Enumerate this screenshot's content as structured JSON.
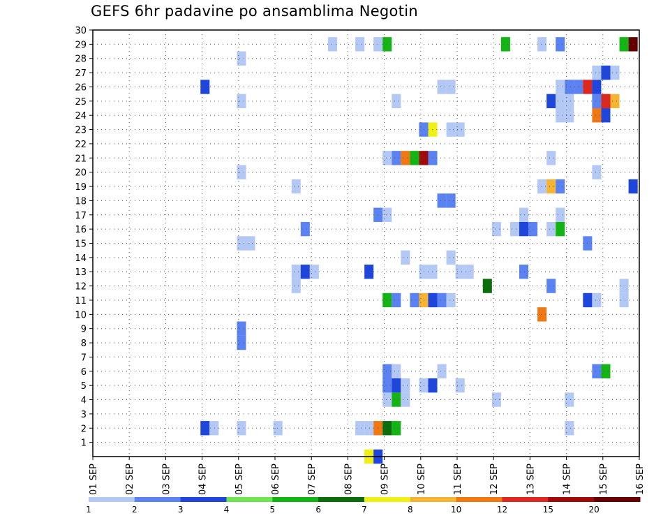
{
  "chart_data": {
    "type": "heatmap",
    "title": "GEFS 6hr padavine po ansamblima Negotin",
    "x_ticks": [
      "01 SEP",
      "02 SEP",
      "03 SEP",
      "04 SEP",
      "05 SEP",
      "06 SEP",
      "07 SEP",
      "08 SEP",
      "09 SEP",
      "10 SEP",
      "11 SEP",
      "12 SEP",
      "13 SEP",
      "14 SEP",
      "15 SEP",
      "16 SEP"
    ],
    "y_ticks": [
      "1",
      "2",
      "3",
      "4",
      "5",
      "6",
      "7",
      "8",
      "9",
      "10",
      "11",
      "12",
      "13",
      "14",
      "15",
      "16",
      "17",
      "18",
      "19",
      "20",
      "21",
      "22",
      "23",
      "24",
      "25",
      "26",
      "27",
      "28",
      "29",
      "30"
    ],
    "xlim": [
      "01 SEP",
      "16 SEP"
    ],
    "ylim": [
      0,
      30
    ],
    "grid": true,
    "legend": {
      "placement": "bottom",
      "labels": [
        "1",
        "2",
        "3",
        "4",
        "5",
        "6",
        "7",
        "8",
        "10",
        "12",
        "15",
        "20"
      ],
      "colors": [
        "#b4c8f5",
        "#5a82f0",
        "#1e46dc",
        "#6ee650",
        "#14b414",
        "#0a6e0a",
        "#f0f014",
        "#f5b432",
        "#f07814",
        "#dc281e",
        "#a00a0a",
        "#640000"
      ]
    },
    "cells_note": "x = day of September (decimal, 6-hour steps), member = ensemble member (y), v = 6hr precipitation (mm, category lower bound)",
    "cells": [
      {
        "x": 8.58,
        "member": 0,
        "v": 7
      },
      {
        "x": 8.83,
        "member": 0,
        "v": 3
      },
      {
        "x": 4.08,
        "member": 2,
        "v": 3
      },
      {
        "x": 4.33,
        "member": 2,
        "v": 1
      },
      {
        "x": 5.08,
        "member": 2,
        "v": 1
      },
      {
        "x": 6.08,
        "member": 2,
        "v": 1
      },
      {
        "x": 8.33,
        "member": 2,
        "v": 1
      },
      {
        "x": 8.58,
        "member": 2,
        "v": 1
      },
      {
        "x": 8.83,
        "member": 2,
        "v": 10
      },
      {
        "x": 9.08,
        "member": 2,
        "v": 6
      },
      {
        "x": 9.33,
        "member": 2,
        "v": 5
      },
      {
        "x": 14.08,
        "member": 2,
        "v": 1
      },
      {
        "x": 9.08,
        "member": 4,
        "v": 1
      },
      {
        "x": 9.33,
        "member": 4,
        "v": 5
      },
      {
        "x": 9.58,
        "member": 4,
        "v": 1
      },
      {
        "x": 14.08,
        "member": 4,
        "v": 1
      },
      {
        "x": 12.08,
        "member": 4,
        "v": 1
      },
      {
        "x": 9.08,
        "member": 5,
        "v": 2
      },
      {
        "x": 9.33,
        "member": 5,
        "v": 3
      },
      {
        "x": 9.58,
        "member": 5,
        "v": 1
      },
      {
        "x": 10.08,
        "member": 5,
        "v": 1
      },
      {
        "x": 10.33,
        "member": 5,
        "v": 3
      },
      {
        "x": 11.08,
        "member": 5,
        "v": 1
      },
      {
        "x": 9.08,
        "member": 6,
        "v": 2
      },
      {
        "x": 9.33,
        "member": 6,
        "v": 1
      },
      {
        "x": 10.58,
        "member": 6,
        "v": 1
      },
      {
        "x": 14.83,
        "member": 6,
        "v": 2
      },
      {
        "x": 15.08,
        "member": 6,
        "v": 5
      },
      {
        "x": 5.08,
        "member": 8,
        "v": 2
      },
      {
        "x": 5.08,
        "member": 9,
        "v": 2
      },
      {
        "x": 13.33,
        "member": 10,
        "v": 10
      },
      {
        "x": 9.08,
        "member": 11,
        "v": 5
      },
      {
        "x": 9.33,
        "member": 11,
        "v": 2
      },
      {
        "x": 9.83,
        "member": 11,
        "v": 2
      },
      {
        "x": 10.08,
        "member": 11,
        "v": 8
      },
      {
        "x": 10.33,
        "member": 11,
        "v": 3
      },
      {
        "x": 10.58,
        "member": 11,
        "v": 2
      },
      {
        "x": 10.83,
        "member": 11,
        "v": 1
      },
      {
        "x": 14.58,
        "member": 11,
        "v": 3
      },
      {
        "x": 14.83,
        "member": 11,
        "v": 1
      },
      {
        "x": 15.58,
        "member": 11,
        "v": 1
      },
      {
        "x": 6.58,
        "member": 12,
        "v": 1
      },
      {
        "x": 11.83,
        "member": 12,
        "v": 6
      },
      {
        "x": 13.58,
        "member": 12,
        "v": 2
      },
      {
        "x": 15.58,
        "member": 12,
        "v": 1
      },
      {
        "x": 6.58,
        "member": 13,
        "v": 1
      },
      {
        "x": 6.83,
        "member": 13,
        "v": 3
      },
      {
        "x": 7.08,
        "member": 13,
        "v": 1
      },
      {
        "x": 8.58,
        "member": 13,
        "v": 3
      },
      {
        "x": 10.08,
        "member": 13,
        "v": 1
      },
      {
        "x": 10.33,
        "member": 13,
        "v": 1
      },
      {
        "x": 11.08,
        "member": 13,
        "v": 1
      },
      {
        "x": 11.33,
        "member": 13,
        "v": 1
      },
      {
        "x": 12.83,
        "member": 13,
        "v": 2
      },
      {
        "x": 9.58,
        "member": 14,
        "v": 1
      },
      {
        "x": 10.83,
        "member": 14,
        "v": 1
      },
      {
        "x": 5.08,
        "member": 15,
        "v": 1
      },
      {
        "x": 5.33,
        "member": 15,
        "v": 1
      },
      {
        "x": 14.58,
        "member": 15,
        "v": 2
      },
      {
        "x": 6.83,
        "member": 16,
        "v": 2
      },
      {
        "x": 12.08,
        "member": 16,
        "v": 1
      },
      {
        "x": 12.58,
        "member": 16,
        "v": 1
      },
      {
        "x": 12.83,
        "member": 16,
        "v": 3
      },
      {
        "x": 13.08,
        "member": 16,
        "v": 2
      },
      {
        "x": 13.58,
        "member": 16,
        "v": 1
      },
      {
        "x": 13.83,
        "member": 16,
        "v": 5
      },
      {
        "x": 8.83,
        "member": 17,
        "v": 2
      },
      {
        "x": 9.08,
        "member": 17,
        "v": 1
      },
      {
        "x": 12.83,
        "member": 17,
        "v": 1
      },
      {
        "x": 13.83,
        "member": 17,
        "v": 1
      },
      {
        "x": 10.58,
        "member": 18,
        "v": 2
      },
      {
        "x": 10.83,
        "member": 18,
        "v": 2
      },
      {
        "x": 6.58,
        "member": 19,
        "v": 1
      },
      {
        "x": 13.33,
        "member": 19,
        "v": 1
      },
      {
        "x": 13.58,
        "member": 19,
        "v": 8
      },
      {
        "x": 13.83,
        "member": 19,
        "v": 2
      },
      {
        "x": 15.83,
        "member": 19,
        "v": 3
      },
      {
        "x": 5.08,
        "member": 20,
        "v": 1
      },
      {
        "x": 14.83,
        "member": 20,
        "v": 1
      },
      {
        "x": 9.08,
        "member": 21,
        "v": 1
      },
      {
        "x": 9.33,
        "member": 21,
        "v": 2
      },
      {
        "x": 9.58,
        "member": 21,
        "v": 10
      },
      {
        "x": 9.83,
        "member": 21,
        "v": 5
      },
      {
        "x": 10.08,
        "member": 21,
        "v": 15
      },
      {
        "x": 10.33,
        "member": 21,
        "v": 2
      },
      {
        "x": 13.58,
        "member": 21,
        "v": 1
      },
      {
        "x": 10.08,
        "member": 23,
        "v": 2
      },
      {
        "x": 10.33,
        "member": 23,
        "v": 7
      },
      {
        "x": 10.83,
        "member": 23,
        "v": 1
      },
      {
        "x": 11.08,
        "member": 23,
        "v": 1
      },
      {
        "x": 13.83,
        "member": 24,
        "v": 1
      },
      {
        "x": 14.08,
        "member": 24,
        "v": 1
      },
      {
        "x": 14.83,
        "member": 24,
        "v": 10
      },
      {
        "x": 15.08,
        "member": 24,
        "v": 3
      },
      {
        "x": 5.08,
        "member": 25,
        "v": 1
      },
      {
        "x": 9.33,
        "member": 25,
        "v": 1
      },
      {
        "x": 13.58,
        "member": 25,
        "v": 3
      },
      {
        "x": 13.83,
        "member": 25,
        "v": 1
      },
      {
        "x": 14.08,
        "member": 25,
        "v": 1
      },
      {
        "x": 14.83,
        "member": 25,
        "v": 2
      },
      {
        "x": 15.08,
        "member": 25,
        "v": 12
      },
      {
        "x": 15.33,
        "member": 25,
        "v": 8
      },
      {
        "x": 4.08,
        "member": 26,
        "v": 3
      },
      {
        "x": 10.58,
        "member": 26,
        "v": 1
      },
      {
        "x": 10.83,
        "member": 26,
        "v": 1
      },
      {
        "x": 13.83,
        "member": 26,
        "v": 1
      },
      {
        "x": 14.08,
        "member": 26,
        "v": 2
      },
      {
        "x": 14.33,
        "member": 26,
        "v": 2
      },
      {
        "x": 14.58,
        "member": 26,
        "v": 12
      },
      {
        "x": 14.83,
        "member": 26,
        "v": 3
      },
      {
        "x": 14.83,
        "member": 27,
        "v": 1
      },
      {
        "x": 15.08,
        "member": 27,
        "v": 3
      },
      {
        "x": 15.33,
        "member": 27,
        "v": 1
      },
      {
        "x": 5.08,
        "member": 28,
        "v": 1
      },
      {
        "x": 7.58,
        "member": 29,
        "v": 1
      },
      {
        "x": 8.33,
        "member": 29,
        "v": 1
      },
      {
        "x": 8.83,
        "member": 29,
        "v": 1
      },
      {
        "x": 9.08,
        "member": 29,
        "v": 5
      },
      {
        "x": 12.33,
        "member": 29,
        "v": 5
      },
      {
        "x": 13.33,
        "member": 29,
        "v": 1
      },
      {
        "x": 13.83,
        "member": 29,
        "v": 2
      },
      {
        "x": 15.58,
        "member": 29,
        "v": 5
      },
      {
        "x": 15.83,
        "member": 29,
        "v": 20
      }
    ]
  }
}
